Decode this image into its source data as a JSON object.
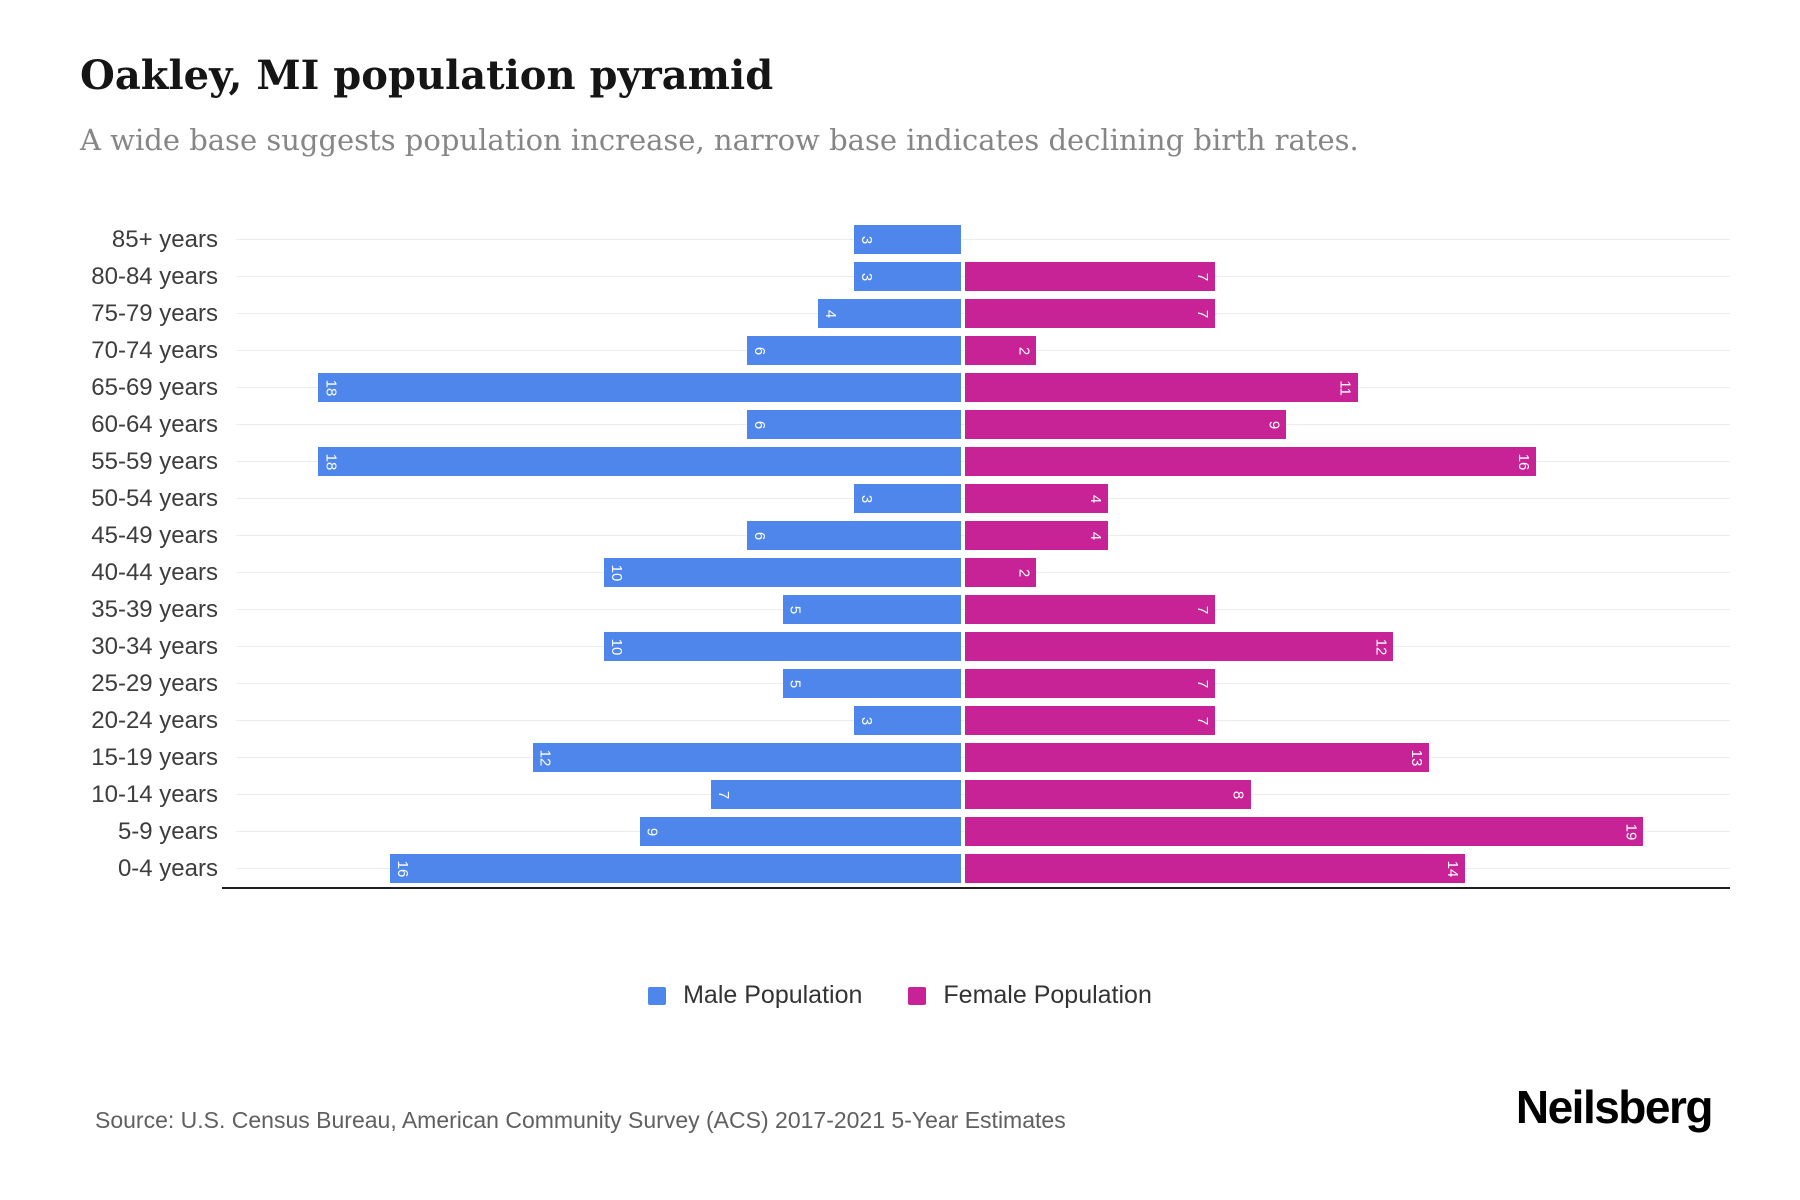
{
  "title": "Oakley, MI population pyramid",
  "subtitle": "A wide base suggests population increase, narrow base indicates declining birth rates.",
  "legend": {
    "male_label": "Male Population",
    "female_label": "Female Population"
  },
  "footer": {
    "source": "Source: U.S. Census Bureau, American Community Survey (ACS) 2017-2021 5-Year Estimates",
    "brand": "Neilsberg"
  },
  "colors": {
    "male": "#4F86EC",
    "female": "#C72296",
    "grid": "#EDEDED",
    "axis": "#1F1F1F",
    "value_label": "#FFFFFF"
  },
  "chart_data": {
    "type": "bar",
    "variant": "population-pyramid",
    "orientation": "horizontal",
    "categories": [
      "85+ years",
      "80-84 years",
      "75-79 years",
      "70-74 years",
      "65-69 years",
      "60-64 years",
      "55-59 years",
      "50-54 years",
      "45-49 years",
      "40-44 years",
      "35-39 years",
      "30-34 years",
      "25-29 years",
      "20-24 years",
      "15-19 years",
      "10-14 years",
      "5-9 years",
      "0-4 years"
    ],
    "series": [
      {
        "name": "Male Population",
        "side": "left",
        "color": "#4F86EC",
        "values": [
          3,
          3,
          4,
          6,
          18,
          6,
          18,
          3,
          6,
          10,
          5,
          10,
          5,
          3,
          12,
          7,
          9,
          16
        ]
      },
      {
        "name": "Female Population",
        "side": "right",
        "color": "#C72296",
        "values": [
          0,
          7,
          7,
          2,
          11,
          9,
          16,
          4,
          4,
          2,
          7,
          12,
          7,
          7,
          13,
          8,
          19,
          14
        ]
      }
    ],
    "xlim_per_side": [
      0,
      19
    ],
    "value_labels": "white, rotated 90deg, placed inside bar at outer end; zero values show no bar",
    "grid": "light horizontal line per category row",
    "legend_position": "bottom-center"
  }
}
